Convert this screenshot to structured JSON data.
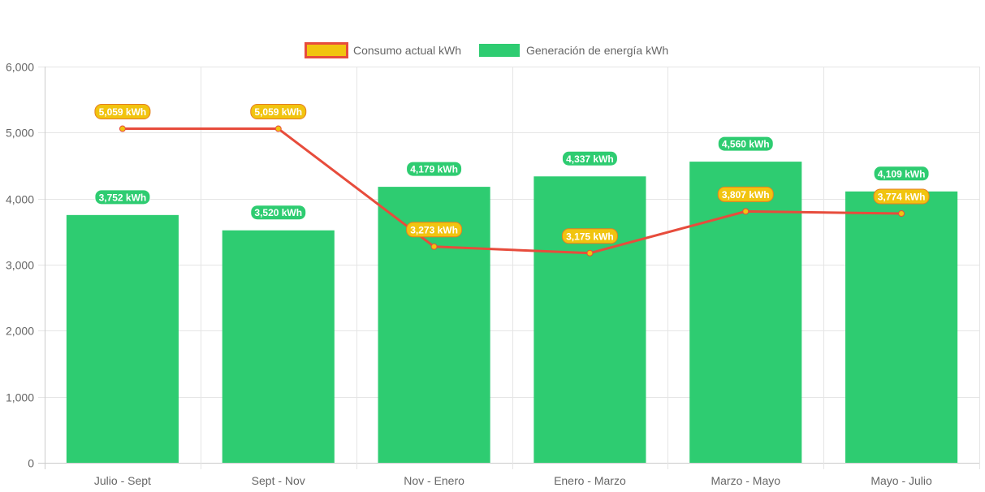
{
  "chart_data": {
    "type": "bar",
    "categories": [
      "Julio - Sept",
      "Sept - Nov",
      "Nov - Enero",
      "Enero - Marzo",
      "Marzo - Mayo",
      "Mayo - Julio"
    ],
    "series": [
      {
        "name": "Consumo actual kWh",
        "type": "line",
        "values": [
          5059,
          5059,
          3273,
          3175,
          3807,
          3774
        ],
        "labels": [
          "5,059 kWh",
          "5,059 kWh",
          "3,273 kWh",
          "3,175 kWh",
          "3,807 kWh",
          "3,774 kWh"
        ],
        "color": "#e74c3c",
        "fill": "#f1c40f"
      },
      {
        "name": "Generación de energía kWh",
        "type": "bar",
        "values": [
          3752,
          3520,
          4179,
          4337,
          4560,
          4109
        ],
        "labels": [
          "3,752 kWh",
          "3,520 kWh",
          "4,179 kWh",
          "4,337 kWh",
          "4,560 kWh",
          "4,109 kWh"
        ],
        "color": "#2ecc71"
      }
    ],
    "yticks": [
      "0",
      "1,000",
      "2,000",
      "3,000",
      "4,000",
      "5,000",
      "6,000"
    ],
    "ylim": [
      0,
      6000
    ],
    "ytick_step": 1000,
    "title": "",
    "xlabel": "",
    "ylabel": "",
    "legend_position": "top-center",
    "grid": true
  }
}
